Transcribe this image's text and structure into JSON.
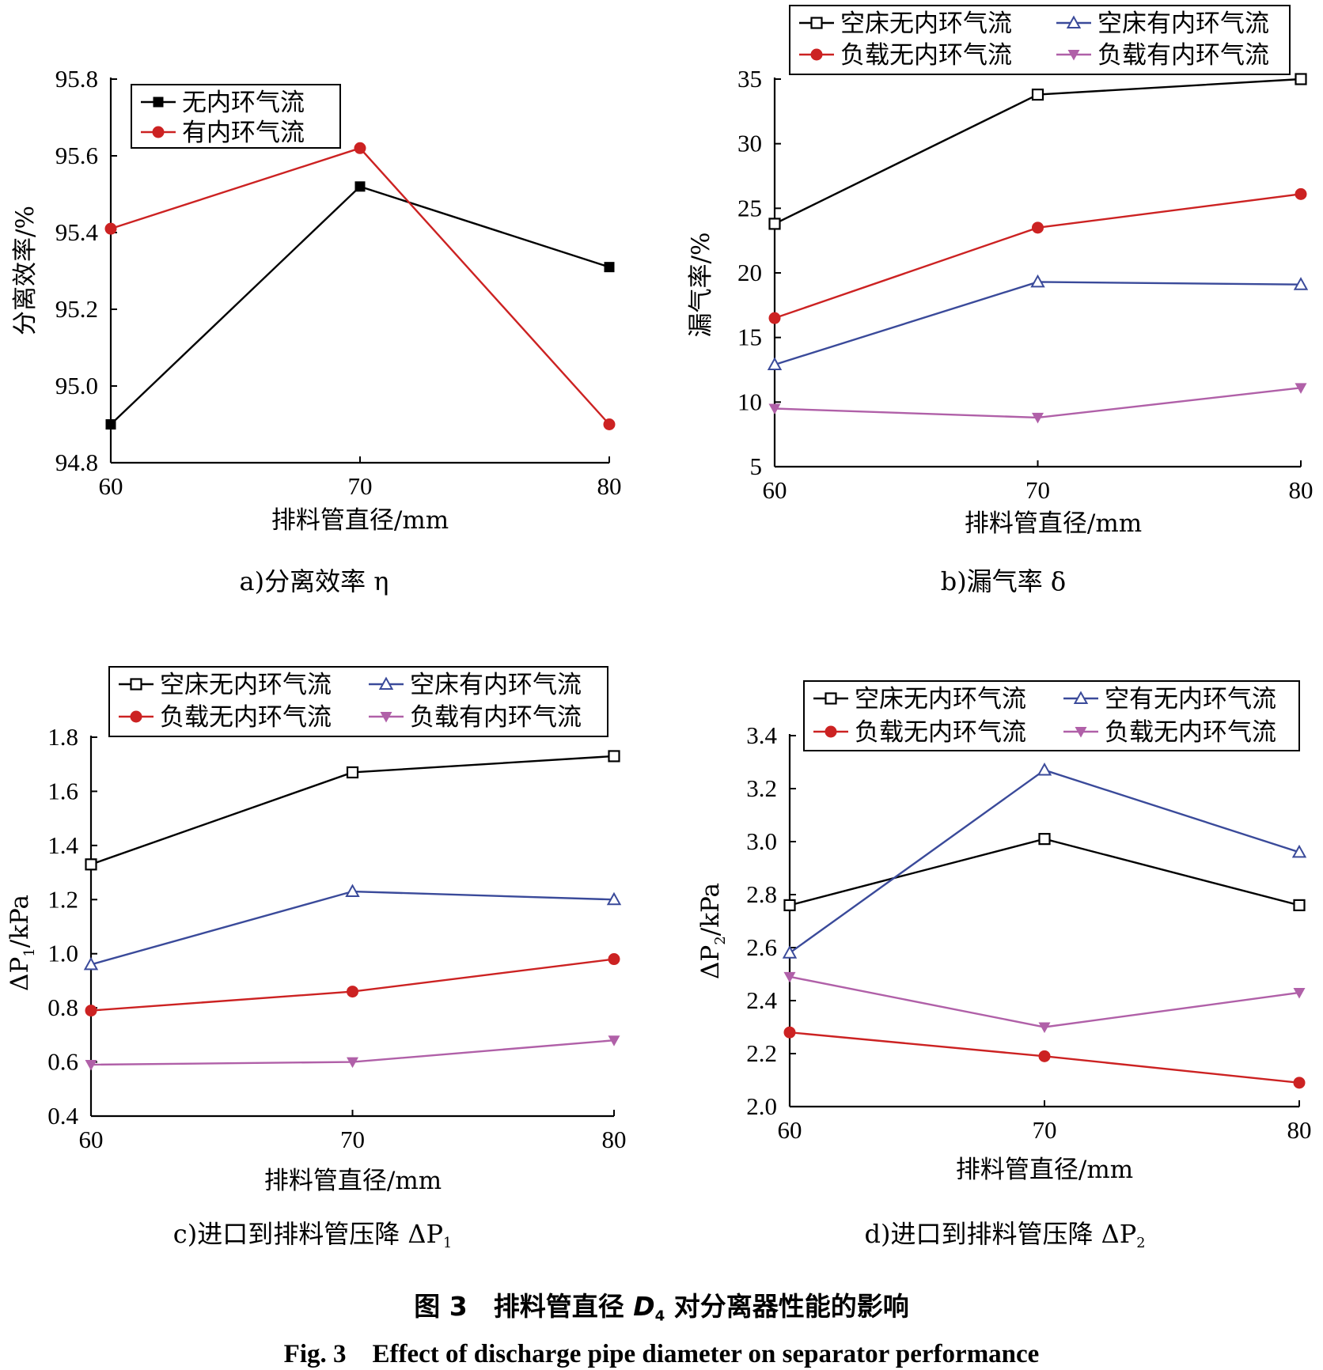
{
  "chart_data": [
    {
      "type": "line",
      "caption": "a)分离效率 η",
      "xlabel": "排料管直径/mm",
      "ylabel": "分离效率/%",
      "x": [
        60,
        70,
        80
      ],
      "xlim": [
        60,
        80
      ],
      "ylim": [
        94.8,
        95.8
      ],
      "xticks": [
        "60",
        "70",
        "80"
      ],
      "yticks": [
        "94.8",
        "95.0",
        "95.2",
        "95.4",
        "95.6",
        "95.8"
      ],
      "legend_position": "top-left",
      "series": [
        {
          "name": "无内环气流",
          "values": [
            94.9,
            95.52,
            95.31
          ],
          "color": "#000000",
          "marker": "square-filled"
        },
        {
          "name": "有内环气流",
          "values": [
            95.41,
            95.62,
            94.9
          ],
          "color": "#cc2222",
          "marker": "circle-filled"
        }
      ]
    },
    {
      "type": "line",
      "caption": "b)漏气率 δ",
      "xlabel": "排料管直径/mm",
      "ylabel": "漏气率/%",
      "x": [
        60,
        70,
        80
      ],
      "xlim": [
        60,
        80
      ],
      "ylim": [
        5,
        35
      ],
      "xticks": [
        "60",
        "70",
        "80"
      ],
      "yticks": [
        "5",
        "10",
        "15",
        "20",
        "25",
        "30",
        "35"
      ],
      "legend_position": "top",
      "series": [
        {
          "name": "空床无内环气流",
          "values": [
            23.8,
            33.8,
            35.0
          ],
          "color": "#000000",
          "marker": "square-open"
        },
        {
          "name": "空床有内环气流",
          "values": [
            12.9,
            19.3,
            19.1
          ],
          "color": "#3a4a9a",
          "marker": "triangle-open"
        },
        {
          "name": "负载无内环气流",
          "values": [
            16.5,
            23.5,
            26.1
          ],
          "color": "#cc2222",
          "marker": "circle-filled"
        },
        {
          "name": "负载有内环气流",
          "values": [
            9.5,
            8.8,
            11.1
          ],
          "color": "#b060a8",
          "marker": "triangle-down-filled"
        }
      ]
    },
    {
      "type": "line",
      "caption_prefix": "c)进口到排料管压降 ΔP",
      "caption_sub": "1",
      "xlabel": "排料管直径/mm",
      "ylabel_prefix": "ΔP",
      "ylabel_sub": "1",
      "ylabel_suffix": "/kPa",
      "x": [
        60,
        70,
        80
      ],
      "xlim": [
        60,
        80
      ],
      "ylim": [
        0.4,
        1.8
      ],
      "xticks": [
        "60",
        "70",
        "80"
      ],
      "yticks": [
        "0.4",
        "0.6",
        "0.8",
        "1.0",
        "1.2",
        "1.4",
        "1.6",
        "1.8"
      ],
      "legend_position": "top",
      "series": [
        {
          "name": "空床无内环气流",
          "values": [
            1.33,
            1.67,
            1.73
          ],
          "color": "#000000",
          "marker": "square-open"
        },
        {
          "name": "空床有内环气流",
          "values": [
            0.96,
            1.23,
            1.2
          ],
          "color": "#3a4a9a",
          "marker": "triangle-open"
        },
        {
          "name": "负载无内环气流",
          "values": [
            0.79,
            0.86,
            0.98
          ],
          "color": "#cc2222",
          "marker": "circle-filled"
        },
        {
          "name": "负载有内环气流",
          "values": [
            0.59,
            0.6,
            0.68
          ],
          "color": "#b060a8",
          "marker": "triangle-down-filled"
        }
      ]
    },
    {
      "type": "line",
      "caption_prefix": "d)进口到排料管压降 ΔP",
      "caption_sub": "2",
      "xlabel": "排料管直径/mm",
      "ylabel_prefix": "ΔP",
      "ylabel_sub": "2",
      "ylabel_suffix": "/kPa",
      "x": [
        60,
        70,
        80
      ],
      "xlim": [
        60,
        80
      ],
      "ylim": [
        2.0,
        3.4
      ],
      "xticks": [
        "60",
        "70",
        "80"
      ],
      "yticks": [
        "2.0",
        "2.2",
        "2.4",
        "2.6",
        "2.8",
        "3.0",
        "3.2",
        "3.4"
      ],
      "legend_position": "top",
      "series": [
        {
          "name": "空床无内环气流",
          "values": [
            2.76,
            3.01,
            2.76
          ],
          "color": "#000000",
          "marker": "square-open"
        },
        {
          "name": "空有无内环气流",
          "values": [
            2.58,
            3.27,
            2.96
          ],
          "color": "#3a4a9a",
          "marker": "triangle-open"
        },
        {
          "name": "负载无内环气流",
          "values": [
            2.28,
            2.19,
            2.09
          ],
          "color": "#cc2222",
          "marker": "circle-filled"
        },
        {
          "name": "负载无内环气流",
          "values": [
            2.49,
            2.3,
            2.43
          ],
          "color": "#b060a8",
          "marker": "triangle-down-filled"
        }
      ]
    }
  ],
  "figure": {
    "title_prefix": "图 3　排料管直径 ",
    "title_var": "D",
    "title_sub": "4",
    "title_suffix": " 对分离器性能的影响",
    "title_en": "Fig. 3　Effect of discharge pipe diameter on separator performance"
  }
}
